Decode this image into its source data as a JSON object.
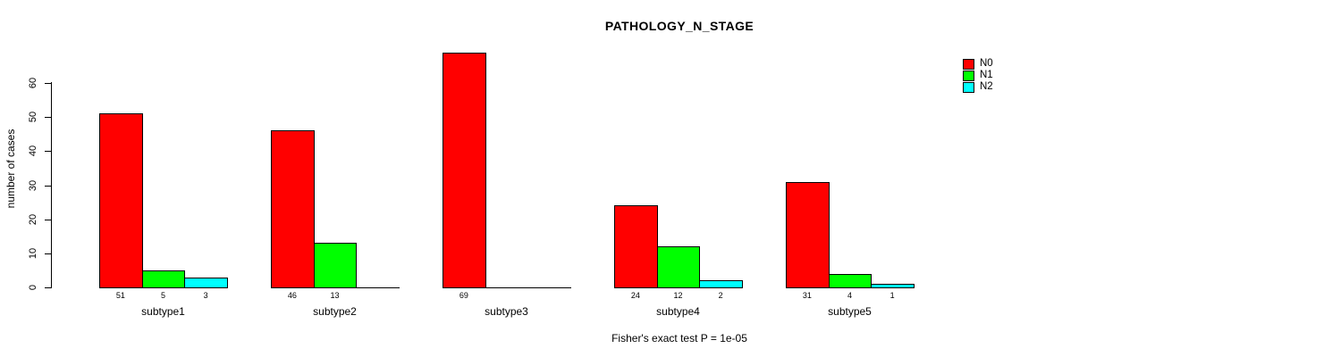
{
  "title": "PATHOLOGY_N_STAGE",
  "footer": "Fisher's exact test P = 1e-05",
  "y_axis": {
    "label": "number of cases",
    "ticks": [
      0,
      10,
      20,
      30,
      40,
      50,
      60
    ]
  },
  "legend": [
    {
      "label": "N0",
      "color": "#FF0000"
    },
    {
      "label": "N1",
      "color": "#00FF00"
    },
    {
      "label": "N2",
      "color": "#00FFFF"
    }
  ],
  "chart_data": {
    "type": "bar",
    "title": "PATHOLOGY_N_STAGE",
    "xlabel": "",
    "ylabel": "number of cases",
    "ylim": [
      0,
      60
    ],
    "grid": false,
    "legend_position": "top-right",
    "categories": [
      "subtype1",
      "subtype2",
      "subtype3",
      "subtype4",
      "subtype5"
    ],
    "series": [
      {
        "name": "N0",
        "color": "#FF0000",
        "values": [
          51,
          46,
          69,
          24,
          31
        ]
      },
      {
        "name": "N1",
        "color": "#00FF00",
        "values": [
          5,
          13,
          0,
          12,
          4
        ]
      },
      {
        "name": "N2",
        "color": "#00FFFF",
        "values": [
          3,
          0,
          0,
          2,
          1
        ]
      }
    ],
    "value_labels": [
      [
        "51",
        "5",
        "3"
      ],
      [
        "46",
        "13",
        ""
      ],
      [
        "69",
        "",
        ""
      ],
      [
        "24",
        "12",
        "2"
      ],
      [
        "31",
        "4",
        "1"
      ]
    ],
    "annotation": "Fisher's exact test P = 1e-05"
  }
}
